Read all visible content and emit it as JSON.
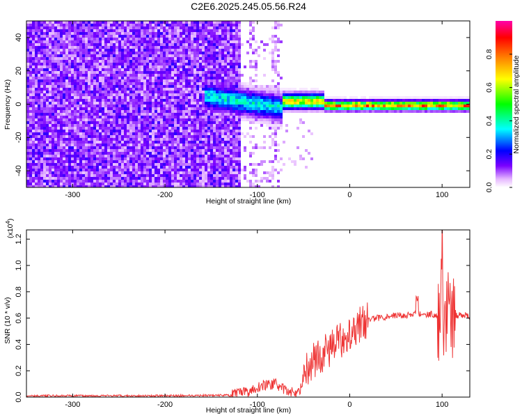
{
  "title": "C2E6.2025.245.05.56.R24",
  "chart_data": [
    {
      "type": "heatmap",
      "xlabel": "Height of straight line (km)",
      "ylabel": "Frequency (Hz)",
      "xlim": [
        -350,
        130
      ],
      "ylim": [
        -50,
        50
      ],
      "x_ticks": [
        -300,
        -200,
        -100,
        0,
        100
      ],
      "y_ticks": [
        -40,
        -20,
        0,
        20,
        40
      ],
      "colorbar": {
        "label": "Normalized spectral amplitude",
        "range": [
          0.0,
          1.0
        ],
        "ticks": [
          "0.0",
          "0.2",
          "0.4",
          "0.6",
          "0.8"
        ],
        "colors": [
          "#ffffff",
          "#e6b8ff",
          "#7a00ff",
          "#0000ff",
          "#00ffff",
          "#00ff00",
          "#ffff00",
          "#ff8000",
          "#ff0000",
          "#ff00aa"
        ]
      },
      "regions": [
        {
          "x_range": [
            -350,
            -120
          ],
          "description": "diffuse noise, amplitude 0.05-0.2 across all frequencies"
        },
        {
          "x_range": [
            -120,
            -75
          ],
          "description": "sparse noise"
        },
        {
          "x_range": [
            -160,
            -75
          ],
          "center_freq": 5,
          "description": "signal band with spread"
        },
        {
          "x_range": [
            -75,
            130
          ],
          "center_freq": 0,
          "description": "narrow strong signal line, amplitude up to ~0.9"
        }
      ]
    },
    {
      "type": "line",
      "xlabel": "Height of straight line (km)",
      "ylabel": "SNR (10 * v/v)",
      "y_multiplier": "(x10",
      "y_multiplier_exp": "4",
      "y_multiplier_close": ")",
      "xlim": [
        -350,
        130
      ],
      "ylim": [
        0,
        1.27
      ],
      "x_ticks": [
        -300,
        -200,
        -100,
        0,
        100
      ],
      "y_ticks": [
        "0.0",
        "0.2",
        "0.4",
        "0.6",
        "0.8",
        "1.0",
        "1.2"
      ],
      "color": "#ee3333",
      "series_points": [
        [
          -350,
          0.01
        ],
        [
          -200,
          0.01
        ],
        [
          -130,
          0.015
        ],
        [
          -110,
          0.04
        ],
        [
          -95,
          0.09
        ],
        [
          -80,
          0.1
        ],
        [
          -70,
          0.05
        ],
        [
          -55,
          0.03
        ],
        [
          -48,
          0.2
        ],
        [
          -40,
          0.28
        ],
        [
          -30,
          0.32
        ],
        [
          -20,
          0.38
        ],
        [
          -10,
          0.43
        ],
        [
          0,
          0.5
        ],
        [
          10,
          0.55
        ],
        [
          20,
          0.59
        ],
        [
          30,
          0.6
        ],
        [
          45,
          0.62
        ],
        [
          60,
          0.62
        ],
        [
          70,
          0.63
        ],
        [
          90,
          0.63
        ],
        [
          100,
          0.6
        ],
        [
          110,
          0.62
        ],
        [
          130,
          0.62
        ]
      ]
    }
  ]
}
